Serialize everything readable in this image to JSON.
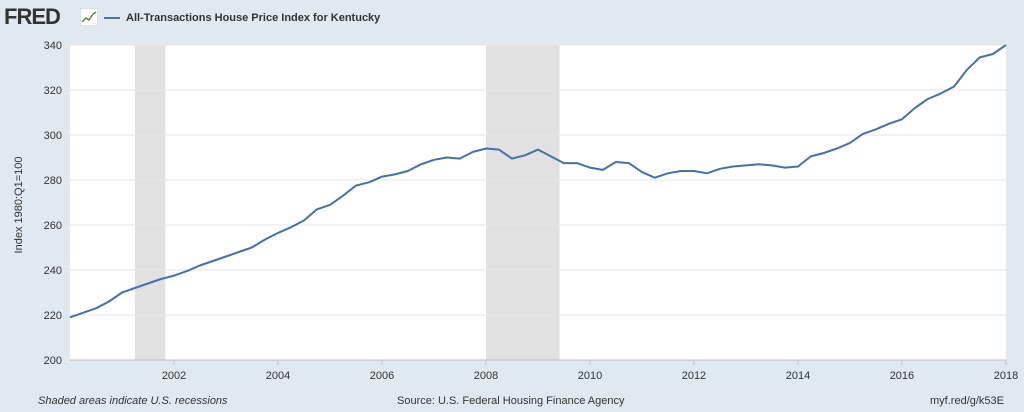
{
  "header": {
    "logo_text": "FRED",
    "logo_icon": "fred-chart-icon",
    "series_label": "All-Transactions House Price Index for Kentucky"
  },
  "colors": {
    "background": "#e1e9f0",
    "plot_background": "#ffffff",
    "line": "#4572a7",
    "recession": "#e1e1e1",
    "grid": "#e6e6e6"
  },
  "footer": {
    "left": "Shaded areas indicate U.S. recessions",
    "center": "Source: U.S. Federal Housing Finance Agency",
    "right": "myf.red/g/k53E"
  },
  "chart_data": {
    "type": "line",
    "ylabel": "Index 1980:Q1=100",
    "ylim": [
      200,
      340
    ],
    "xlim": [
      "2000-01-01",
      "2018-01-01"
    ],
    "yticks": [
      "200",
      "220",
      "240",
      "260",
      "280",
      "300",
      "320",
      "340"
    ],
    "xticks": [
      "2002",
      "2004",
      "2006",
      "2008",
      "2010",
      "2012",
      "2014",
      "2016",
      "2018"
    ],
    "grid": true,
    "recessions": [
      {
        "start": "2001-04-01",
        "end": "2001-11-01"
      },
      {
        "start": "2008-01-01",
        "end": "2009-06-01"
      }
    ],
    "series": [
      {
        "name": "All-Transactions House Price Index for Kentucky",
        "x": [
          "2000-01-01",
          "2000-04-01",
          "2000-07-01",
          "2000-10-01",
          "2001-01-01",
          "2001-04-01",
          "2001-07-01",
          "2001-10-01",
          "2002-01-01",
          "2002-04-01",
          "2002-07-01",
          "2002-10-01",
          "2003-01-01",
          "2003-04-01",
          "2003-07-01",
          "2003-10-01",
          "2004-01-01",
          "2004-04-01",
          "2004-07-01",
          "2004-10-01",
          "2005-01-01",
          "2005-04-01",
          "2005-07-01",
          "2005-10-01",
          "2006-01-01",
          "2006-04-01",
          "2006-07-01",
          "2006-10-01",
          "2007-01-01",
          "2007-04-01",
          "2007-07-01",
          "2007-10-01",
          "2008-01-01",
          "2008-04-01",
          "2008-07-01",
          "2008-10-01",
          "2009-01-01",
          "2009-04-01",
          "2009-07-01",
          "2009-10-01",
          "2010-01-01",
          "2010-04-01",
          "2010-07-01",
          "2010-10-01",
          "2011-01-01",
          "2011-04-01",
          "2011-07-01",
          "2011-10-01",
          "2012-01-01",
          "2012-04-01",
          "2012-07-01",
          "2012-10-01",
          "2013-01-01",
          "2013-04-01",
          "2013-07-01",
          "2013-10-01",
          "2014-01-01",
          "2014-04-01",
          "2014-07-01",
          "2014-10-01",
          "2015-01-01",
          "2015-04-01",
          "2015-07-01",
          "2015-10-01",
          "2016-01-01",
          "2016-04-01",
          "2016-07-01",
          "2016-10-01",
          "2017-01-01",
          "2017-04-01",
          "2017-07-01",
          "2017-10-01",
          "2018-01-01"
        ],
        "values": [
          219.0,
          221.0,
          223.0,
          226.0,
          230.0,
          232.0,
          234.0,
          236.0,
          237.5,
          239.5,
          242.0,
          244.0,
          246.0,
          248.0,
          250.0,
          253.5,
          256.5,
          259.0,
          262.0,
          267.0,
          269.0,
          273.0,
          277.5,
          279.0,
          281.5,
          282.5,
          284.0,
          287.0,
          289.0,
          290.0,
          289.5,
          292.5,
          294.0,
          293.5,
          289.5,
          291.0,
          293.5,
          290.5,
          287.5,
          287.5,
          285.5,
          284.5,
          288.0,
          287.5,
          283.5,
          281.0,
          283.0,
          284.0,
          284.0,
          283.0,
          285.0,
          286.0,
          286.5,
          287.0,
          286.5,
          285.5,
          286.0,
          290.5,
          292.0,
          294.0,
          296.5,
          300.5,
          302.5,
          305.0,
          307.0,
          312.0,
          316.0,
          318.5,
          321.5,
          329.0,
          334.5,
          336.0,
          340.0
        ]
      }
    ]
  }
}
